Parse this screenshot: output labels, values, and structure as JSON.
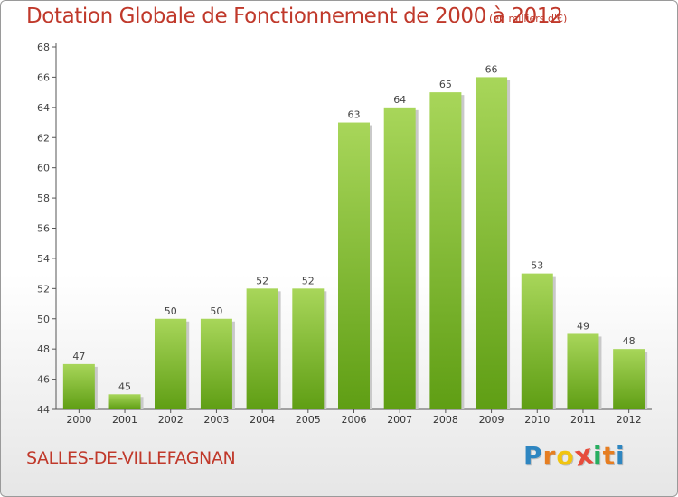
{
  "header": {
    "title": "Dotation Globale de Fonctionnement de 2000 à 2012",
    "subtitle": "(en milliers d'€)"
  },
  "footer": {
    "town": "SALLES-DE-VILLEFAGNAN",
    "logo_letters": [
      "P",
      "r",
      "o",
      "x",
      "i",
      "t",
      "i"
    ],
    "logo_colors": [
      "#2e86c1",
      "#e67e22",
      "#f1c40f",
      "#e74c3c",
      "#27ae60",
      "#e67e22",
      "#2e86c1"
    ]
  },
  "colors": {
    "bar_light": "#a8d65a",
    "bar_dark": "#5f9e14",
    "accent": "#c0392b"
  },
  "chart_data": {
    "type": "bar",
    "title": "Dotation Globale de Fonctionnement de 2000 à 2012",
    "subtitle": "(en milliers d'€)",
    "categories": [
      "2000",
      "2001",
      "2002",
      "2003",
      "2004",
      "2005",
      "2006",
      "2007",
      "2008",
      "2009",
      "2010",
      "2011",
      "2012"
    ],
    "values": [
      47,
      45,
      50,
      50,
      52,
      52,
      63,
      64,
      65,
      66,
      53,
      49,
      48
    ],
    "xlabel": "",
    "ylabel": "",
    "ylim": [
      44,
      68
    ],
    "yticks": [
      44,
      46,
      48,
      50,
      52,
      54,
      56,
      58,
      60,
      62,
      64,
      66,
      68
    ],
    "grid": false,
    "legend": "none"
  }
}
